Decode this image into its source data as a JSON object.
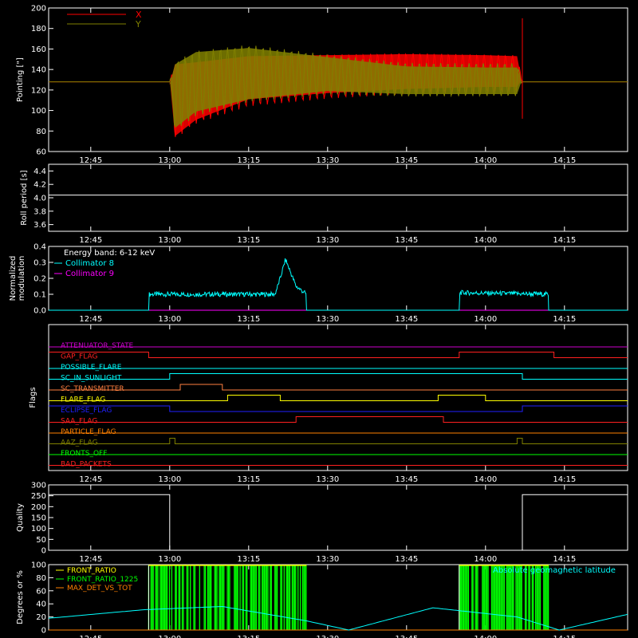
{
  "time_ticks": [
    "12:45",
    "13:00",
    "13:15",
    "13:30",
    "13:45",
    "14:00",
    "14:15"
  ],
  "colors": {
    "background": "#000000",
    "axes": "#ffffff",
    "x_series": "#ff0000",
    "y_series": "#808000",
    "cyan": "#00ffff",
    "magenta": "#ff00ff",
    "green": "#00ff00",
    "orange": "#ff8000",
    "yellow": "#ffff00",
    "blue": "#0000ff",
    "purple": "#cc00cc",
    "olive": "#808000"
  },
  "chart_data": [
    {
      "type": "line",
      "ylabel": "Pointing [\"]",
      "ylim": [
        60,
        200
      ],
      "yticks": [
        "60",
        "80",
        "100",
        "120",
        "140",
        "160",
        "180",
        "200"
      ],
      "xlim": [
        "12:37",
        "14:27"
      ],
      "legend": "top-left",
      "series": [
        {
          "name": "X",
          "color": "#ff0000",
          "x": [
            "12:37",
            "13:00",
            "13:01",
            "13:05",
            "13:15",
            "13:30",
            "13:45",
            "14:00",
            "14:06",
            "14:07",
            "14:27"
          ],
          "y_center": [
            128,
            128,
            110,
            118,
            128,
            133,
            136,
            136,
            136,
            128,
            128
          ],
          "y_min": [
            128,
            128,
            72,
            88,
            108,
            114,
            118,
            120,
            120,
            128,
            128
          ],
          "y_max": [
            128,
            128,
            148,
            150,
            156,
            157,
            158,
            157,
            156,
            128,
            128
          ]
        },
        {
          "name": "Y",
          "color": "#808000",
          "x": [
            "12:37",
            "13:00",
            "13:01",
            "13:05",
            "13:15",
            "13:30",
            "13:45",
            "14:00",
            "14:06",
            "14:07",
            "14:27"
          ],
          "y_center": [
            128,
            128,
            114,
            126,
            136,
            135,
            130,
            130,
            130,
            128,
            128
          ],
          "y_min": [
            128,
            128,
            80,
            96,
            108,
            116,
            113,
            113,
            113,
            128,
            128
          ],
          "y_max": [
            128,
            128,
            148,
            160,
            164,
            155,
            146,
            145,
            145,
            128,
            128
          ]
        }
      ]
    },
    {
      "type": "line",
      "ylabel": "Roll period [s]",
      "ylim": [
        3.5,
        4.5
      ],
      "yticks": [
        "3.6",
        "3.8",
        "4.0",
        "4.2",
        "4.4"
      ],
      "series": [
        {
          "color": "#ffffff",
          "x": [
            "12:37",
            "14:27"
          ],
          "y": [
            4.04,
            4.04
          ]
        }
      ]
    },
    {
      "type": "line",
      "ylabel": "Normalized modulation",
      "ylim": [
        0,
        0.4
      ],
      "yticks": [
        "0.0",
        "0.1",
        "0.2",
        "0.3",
        "0.4"
      ],
      "legend": "top-left",
      "annotation": "Energy band: 6-12 keV",
      "series": [
        {
          "name": "Collimator 8",
          "color": "#00ffff",
          "x": [
            "12:37",
            "12:56",
            "12:56",
            "13:20",
            "13:21",
            "13:22",
            "13:24",
            "13:26",
            "13:26",
            "13:55",
            "13:55",
            "14:12",
            "14:12",
            "14:27"
          ],
          "y": [
            0,
            0,
            0.1,
            0.1,
            0.2,
            0.32,
            0.15,
            0.1,
            0,
            0,
            0.11,
            0.1,
            0,
            0
          ]
        },
        {
          "name": "Collimator 9",
          "color": "#ff00ff",
          "x": [
            "12:37",
            "14:27"
          ],
          "y": [
            0,
            0
          ]
        }
      ]
    },
    {
      "type": "line",
      "ylabel": "Flags",
      "series": [
        {
          "name": "ATTENUATOR_STATE",
          "color": "#cc00cc",
          "x": [
            "12:37",
            "14:27"
          ],
          "y": [
            0,
            0
          ]
        },
        {
          "name": "GAP_FLAG",
          "color": "#ff2020",
          "x": [
            "12:37",
            "12:56",
            "12:56",
            "13:55",
            "13:55",
            "14:13",
            "14:13",
            "14:27"
          ],
          "y": [
            1,
            1,
            0,
            0,
            1,
            1,
            0,
            0
          ]
        },
        {
          "name": "POSSIBLE_FLARE",
          "color": "#00ffff",
          "x": [
            "12:37",
            "14:27"
          ],
          "y": [
            0,
            0
          ]
        },
        {
          "name": "SC_IN_SUNLIGHT",
          "color": "#00ffff",
          "x": [
            "12:37",
            "13:00",
            "13:00",
            "14:07",
            "14:07",
            "14:27"
          ],
          "y": [
            0,
            0,
            1,
            1,
            0,
            0
          ]
        },
        {
          "name": "SC_TRANSMITTER",
          "color": "#ff8040",
          "x": [
            "12:37",
            "13:02",
            "13:02",
            "13:10",
            "13:10",
            "14:27"
          ],
          "y": [
            0,
            0,
            1,
            1,
            0,
            0
          ]
        },
        {
          "name": "FLARE_FLAG",
          "color": "#ffff00",
          "x": [
            "12:37",
            "13:11",
            "13:11",
            "13:21",
            "13:21",
            "13:51",
            "13:51",
            "14:00",
            "14:00",
            "14:27"
          ],
          "y": [
            0,
            0,
            1,
            1,
            0,
            0,
            1,
            1,
            0,
            0
          ]
        },
        {
          "name": "ECLIPSE_FLAG",
          "color": "#2020ff",
          "x": [
            "12:37",
            "13:00",
            "13:00",
            "14:07",
            "14:07",
            "14:27"
          ],
          "y": [
            1,
            1,
            0,
            0,
            1,
            1
          ]
        },
        {
          "name": "SAA_FLAG",
          "color": "#ff2020",
          "x": [
            "12:37",
            "13:24",
            "13:24",
            "13:52",
            "13:52",
            "14:27"
          ],
          "y": [
            0,
            0,
            1,
            1,
            0,
            0
          ]
        },
        {
          "name": "PARTICLE_FLAG",
          "color": "#ff8000",
          "x": [
            "12:37",
            "14:27"
          ],
          "y": [
            0,
            0
          ]
        },
        {
          "name": "AAZ_FLAG",
          "color": "#808000",
          "x": [
            "12:37",
            "13:00",
            "13:00",
            "13:01",
            "13:01",
            "14:06",
            "14:06",
            "14:07",
            "14:07",
            "14:27"
          ],
          "y": [
            0,
            0,
            1,
            1,
            0,
            0,
            1,
            1,
            0,
            0
          ]
        },
        {
          "name": "FRONTS_OFF",
          "color": "#00ff00",
          "x": [
            "12:37",
            "14:27"
          ],
          "y": [
            0,
            0
          ]
        },
        {
          "name": "BAD_PACKETS",
          "color": "#ff2020",
          "x": [
            "12:37",
            "14:27"
          ],
          "y": [
            0,
            0
          ]
        }
      ]
    },
    {
      "type": "line",
      "ylabel": "Quality",
      "ylim": [
        0,
        300
      ],
      "yticks": [
        "0",
        "50",
        "100",
        "150",
        "200",
        "250",
        "300"
      ],
      "series": [
        {
          "color": "#ffffff",
          "x": [
            "12:37",
            "13:00",
            "13:00",
            "14:07",
            "14:07",
            "14:27"
          ],
          "y": [
            255,
            255,
            0,
            0,
            255,
            255
          ]
        }
      ]
    },
    {
      "type": "line",
      "ylabel": "Degrees or %",
      "ylim": [
        0,
        100
      ],
      "yticks": [
        "0",
        "20",
        "40",
        "60",
        "80",
        "100"
      ],
      "legend": "top-left",
      "series": [
        {
          "name": "FRONT_RATIO",
          "color": "#ffff00",
          "x": [
            "12:56",
            "13:26",
            "13:55",
            "14:12"
          ],
          "y": [
            100,
            100,
            100,
            100
          ]
        },
        {
          "name": "FRONT_RATIO_1225",
          "color": "#00ff00",
          "x": [
            "12:56",
            "13:26",
            "13:55",
            "14:12"
          ],
          "y": [
            100,
            100,
            100,
            100
          ]
        },
        {
          "name": "MAX_DET_VS_TOT",
          "color": "#ff8000",
          "x": [
            "12:37",
            "14:27"
          ],
          "y": [
            0,
            0
          ]
        },
        {
          "name": "Absolute geomagnetic latitude",
          "color": "#00ffff",
          "x": [
            "12:37",
            "12:55",
            "13:10",
            "13:26",
            "13:34",
            "13:50",
            "14:06",
            "14:14",
            "14:27"
          ],
          "y": [
            18,
            31,
            36,
            14,
            0,
            34,
            20,
            0,
            24
          ]
        }
      ]
    }
  ]
}
